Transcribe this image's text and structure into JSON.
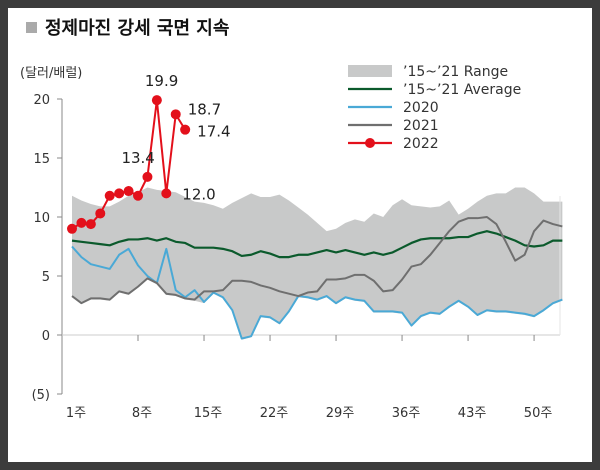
{
  "title": "정제마진 강세 국면 지속",
  "colors": {
    "range": "#c8c9c9",
    "average": "#0b5a2c",
    "y2020": "#4aa9d6",
    "y2021": "#6f6f6f",
    "y2022": "#e3101b",
    "title_marker": "#aaaaaa"
  },
  "chart_data": {
    "type": "line",
    "title": "정제마진 강세 국면 지속",
    "ylabel": "(달러/배럴)",
    "xlabel": "",
    "ylim": [
      -5,
      20
    ],
    "yticks": [
      20,
      15,
      10,
      5,
      0,
      -5
    ],
    "ytick_labels": [
      "20",
      "15",
      "10",
      "5",
      "0",
      "(5)"
    ],
    "xlim": [
      1,
      53
    ],
    "xticks": [
      1,
      8,
      15,
      22,
      29,
      36,
      43,
      50
    ],
    "xtick_labels": [
      "1주",
      "8주",
      "15주",
      "22주",
      "29주",
      "36주",
      "43주",
      "50주"
    ],
    "grid": false,
    "legend_position": "top-right",
    "range": {
      "name": "’15~’21 Range",
      "upper": [
        11.8,
        11.4,
        11.1,
        10.9,
        10.9,
        11.3,
        11.8,
        12.1,
        12.5,
        12.3,
        12.2,
        12.1,
        11.7,
        11.3,
        11.2,
        11.0,
        10.7,
        11.2,
        11.6,
        12.0,
        11.7,
        11.7,
        11.9,
        11.4,
        10.8,
        10.2,
        9.5,
        8.8,
        9.0,
        9.5,
        9.8,
        9.6,
        10.3,
        10.0,
        11.0,
        11.5,
        11.0,
        10.9,
        10.8,
        10.9,
        11.4,
        10.2,
        10.7,
        11.3,
        11.8,
        12.0,
        12.0,
        12.5,
        12.5,
        12.0,
        11.3,
        11.3,
        11.3
      ],
      "lower": [
        3.2,
        2.7,
        3.0,
        3.0,
        2.9,
        3.6,
        3.4,
        4.0,
        4.7,
        4.3,
        3.4,
        3.3,
        3.0,
        2.9,
        2.7,
        3.5,
        3.1,
        2.0,
        -0.4,
        -0.2,
        1.5,
        1.4,
        0.9,
        1.9,
        3.2,
        3.1,
        2.9,
        3.2,
        2.6,
        3.1,
        2.9,
        2.8,
        1.9,
        1.9,
        1.9,
        1.8,
        0.7,
        1.5,
        1.8,
        1.7,
        2.3,
        2.8,
        2.3,
        1.6,
        2.0,
        1.9,
        1.9,
        1.8,
        1.7,
        1.5,
        2.0,
        2.6,
        2.9
      ]
    },
    "series": [
      {
        "name": "’15~’21 Average",
        "values": [
          8.0,
          7.9,
          7.8,
          7.7,
          7.6,
          7.9,
          8.1,
          8.1,
          8.2,
          8.0,
          8.2,
          7.9,
          7.8,
          7.4,
          7.4,
          7.4,
          7.3,
          7.1,
          6.7,
          6.8,
          7.1,
          6.9,
          6.6,
          6.6,
          6.8,
          6.8,
          7.0,
          7.2,
          7.0,
          7.2,
          7.0,
          6.8,
          7.0,
          6.8,
          7.0,
          7.4,
          7.8,
          8.1,
          8.2,
          8.2,
          8.2,
          8.3,
          8.3,
          8.6,
          8.8,
          8.6,
          8.3,
          8.0,
          7.6,
          7.5,
          7.6,
          8.0,
          8.0
        ]
      },
      {
        "name": "2020",
        "values": [
          7.5,
          6.6,
          6.0,
          5.8,
          5.6,
          6.8,
          7.3,
          5.9,
          5.0,
          4.4,
          7.3,
          3.8,
          3.2,
          3.8,
          2.8,
          3.6,
          3.2,
          2.1,
          -0.3,
          -0.1,
          1.6,
          1.5,
          1.0,
          2.0,
          3.3,
          3.2,
          3.0,
          3.3,
          2.7,
          3.2,
          3.0,
          2.9,
          2.0,
          2.0,
          2.0,
          1.9,
          0.8,
          1.6,
          1.9,
          1.8,
          2.4,
          2.9,
          2.4,
          1.7,
          2.1,
          2.0,
          2.0,
          1.9,
          1.8,
          1.6,
          2.1,
          2.7,
          3.0
        ]
      },
      {
        "name": "2021",
        "values": [
          3.3,
          2.7,
          3.1,
          3.1,
          3.0,
          3.7,
          3.5,
          4.1,
          4.8,
          4.4,
          3.5,
          3.4,
          3.1,
          3.0,
          3.7,
          3.7,
          3.8,
          4.6,
          4.6,
          4.5,
          4.2,
          4.0,
          3.7,
          3.5,
          3.3,
          3.6,
          3.7,
          4.7,
          4.7,
          4.8,
          5.1,
          5.1,
          4.6,
          3.7,
          3.8,
          4.7,
          5.8,
          6.0,
          6.8,
          7.8,
          8.8,
          9.6,
          9.9,
          9.9,
          10.0,
          9.4,
          7.9,
          6.3,
          6.8,
          8.8,
          9.7,
          9.4,
          9.2
        ]
      },
      {
        "name": "2022",
        "values": [
          9.0,
          9.5,
          9.4,
          10.3,
          11.8,
          12.0,
          12.2,
          11.8,
          13.4,
          19.9,
          12.0,
          18.7,
          17.4
        ]
      }
    ],
    "annotations": [
      {
        "week": 9,
        "value": 13.4,
        "text": "13.4"
      },
      {
        "week": 10,
        "value": 19.9,
        "text": "19.9"
      },
      {
        "week": 11,
        "value": 12.0,
        "text": "12.0"
      },
      {
        "week": 12,
        "value": 18.7,
        "text": "18.7"
      },
      {
        "week": 13,
        "value": 17.4,
        "text": "17.4"
      }
    ]
  }
}
